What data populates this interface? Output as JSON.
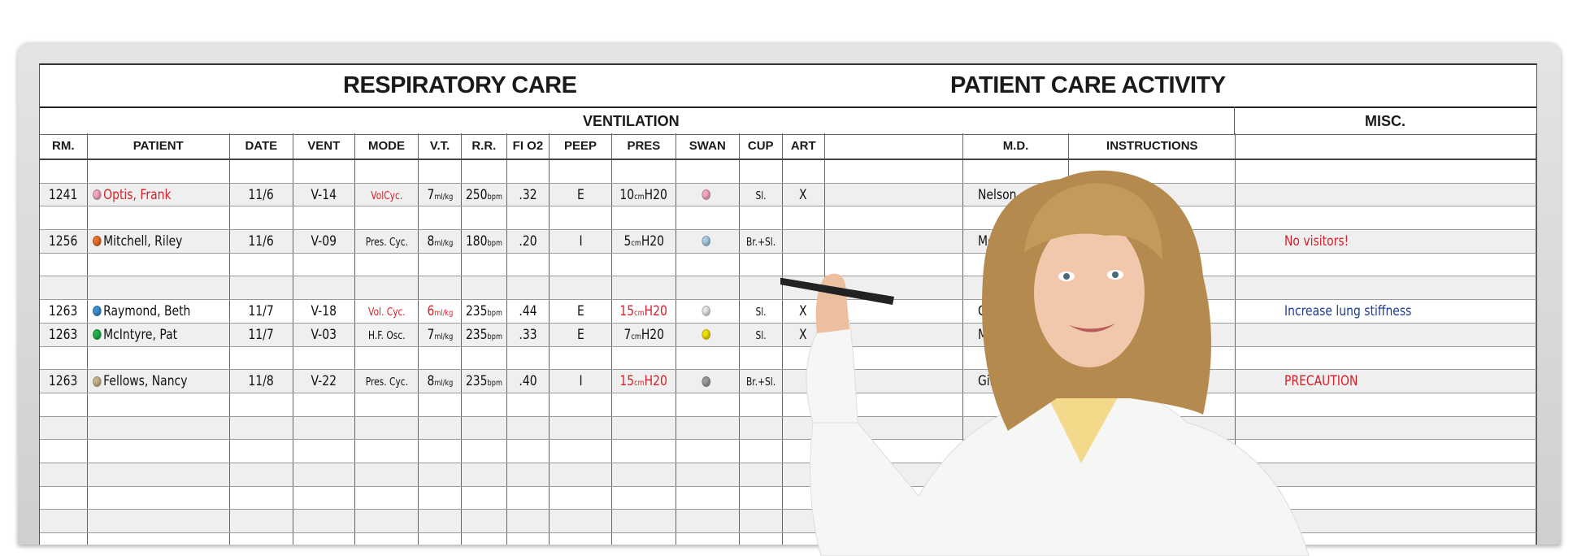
{
  "titles": {
    "left": "RESPIRATORY CARE",
    "right": "PATIENT CARE ACTIVITY"
  },
  "bands": {
    "ventilation": "VENTILATION",
    "misc": "MISC."
  },
  "columns": [
    "RM.",
    "PATIENT",
    "DATE",
    "VENT",
    "MODE",
    "V.T.",
    "R.R.",
    "FI O2",
    "PEEP",
    "PRES",
    "SWAN",
    "CUP",
    "ART",
    "",
    "M.D.",
    "INSTRUCTIONS",
    ""
  ],
  "colors": {
    "red": "#d4202a",
    "blue": "#1f3a93",
    "row_shade": "#efefef"
  },
  "rows": [
    null,
    {
      "rm": "1241",
      "dot": "#f4a6c0",
      "patient": "Optis, Frank",
      "patient_color": "red",
      "date": "11/6",
      "vent": "V-14",
      "mode": "VolCyc.",
      "mode_color": "red",
      "vt": {
        "v": "7",
        "u": "ml/kg"
      },
      "rr": {
        "v": "250",
        "u": "bpm"
      },
      "fio2": ".32",
      "peep": "E",
      "pres": {
        "v": "10",
        "u": "cm",
        "w": "H20"
      },
      "swan": "#f4a6c0",
      "cup": "Sl.",
      "art": "X",
      "md": "Nelson",
      "misc": ""
    },
    null,
    {
      "rm": "1256",
      "dot": "#e8702a",
      "patient": "Mitchell, Riley",
      "date": "11/6",
      "vent": "V-09",
      "mode": "Pres. Cyc.",
      "vt": {
        "v": "8",
        "u": "ml/kg"
      },
      "rr": {
        "v": "180",
        "u": "bpm"
      },
      "fio2": ".20",
      "peep": "I",
      "pres": {
        "v": "5",
        "u": "cm",
        "w": "H20"
      },
      "swan": "#a8cce0",
      "cup": "Br.+Sl.",
      "art": "",
      "md": "McKinney",
      "misc": "No visitors!",
      "misc_color": "red"
    },
    null,
    null,
    {
      "rm": "1263",
      "dot": "#3a8fd0",
      "patient": "Raymond, Beth",
      "date": "11/7",
      "vent": "V-18",
      "mode": "Vol. Cyc.",
      "mode_color": "red",
      "vt": {
        "v": "6",
        "u": "ml/kg",
        "color": "red"
      },
      "rr": {
        "v": "235",
        "u": "bpm"
      },
      "fio2": ".44",
      "peep": "E",
      "pres": {
        "v": "15",
        "u": "cm",
        "w": "H20",
        "color": "red"
      },
      "swan": "#e4e4e4",
      "cup": "Sl.",
      "art": "X",
      "md": "Goulding",
      "misc": "Increase lung stiffness",
      "misc_color": "blue"
    },
    {
      "rm": "1263",
      "dot": "#22b14c",
      "patient": "McIntyre, Pat",
      "date": "11/7",
      "vent": "V-03",
      "mode": "H.F. Osc.",
      "vt": {
        "v": "7",
        "u": "ml/kg"
      },
      "rr": {
        "v": "235",
        "u": "bpm"
      },
      "fio2": ".33",
      "peep": "E",
      "pres": {
        "v": "7",
        "u": "cm",
        "w": "H20"
      },
      "swan": "#f0e000",
      "cup": "Sl.",
      "art": "X",
      "md": "McKinney",
      "misc": ""
    },
    null,
    {
      "rm": "1263",
      "dot": "#c8b48c",
      "patient": "Fellows, Nancy",
      "date": "11/8",
      "vent": "V-22",
      "mode": "Pres. Cyc.",
      "vt": {
        "v": "8",
        "u": "ml/kg"
      },
      "rr": {
        "v": "235",
        "u": "bpm"
      },
      "fio2": ".40",
      "peep": "I",
      "pres": {
        "v": "15",
        "u": "cm",
        "w": "H20",
        "color": "red"
      },
      "swan": "#9a9a9a",
      "cup": "Br.+Sl.",
      "art": "",
      "md": "Gildmeyer",
      "misc": "PRECAUTION",
      "misc_color": "red"
    },
    null,
    null,
    null,
    null,
    null,
    null,
    null
  ]
}
